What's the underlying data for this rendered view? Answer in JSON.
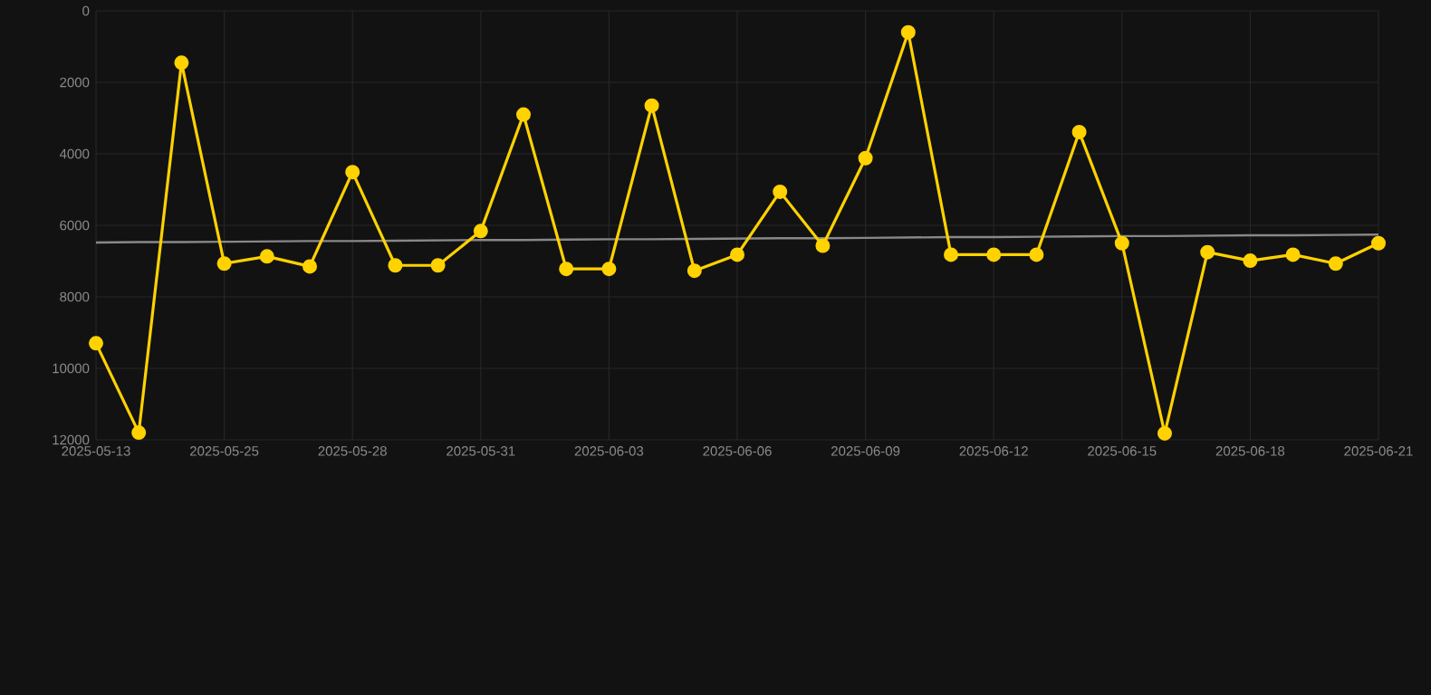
{
  "chart_data": {
    "type": "line",
    "categories": [
      "2025-05-13",
      null,
      null,
      "2025-05-25",
      null,
      null,
      "2025-05-28",
      null,
      null,
      "2025-05-31",
      null,
      null,
      "2025-06-03",
      null,
      null,
      "2025-06-06",
      null,
      null,
      "2025-06-09",
      null,
      null,
      "2025-06-12",
      null,
      null,
      "2025-06-15",
      null,
      null,
      "2025-06-18",
      null,
      null,
      "2025-06-21"
    ],
    "series": [
      {
        "color": "#ffd200",
        "values": [
          9300,
          11800,
          1450,
          7070,
          6870,
          7150,
          4510,
          7120,
          7120,
          6160,
          2900,
          7220,
          7220,
          2650,
          7270,
          6820,
          5060,
          6570,
          4120,
          600,
          6820,
          6820,
          6820,
          3390,
          6500,
          11820,
          6750,
          6990,
          6820,
          7070,
          6500
        ]
      },
      {
        "type": "line",
        "marker": "none",
        "color": "#888888",
        "values": [
          6480,
          6470,
          6470,
          6460,
          6450,
          6440,
          6440,
          6430,
          6420,
          6410,
          6410,
          6400,
          6390,
          6390,
          6380,
          6370,
          6360,
          6360,
          6350,
          6340,
          6330,
          6330,
          6320,
          6310,
          6300,
          6300,
          6290,
          6280,
          6280,
          6270,
          6260
        ]
      }
    ],
    "ylim": [
      12000,
      0
    ],
    "yticks": [
      0,
      2000,
      4000,
      6000,
      8000,
      10000,
      12000
    ],
    "grid": true,
    "marker": "circle",
    "line_style": "solid"
  }
}
